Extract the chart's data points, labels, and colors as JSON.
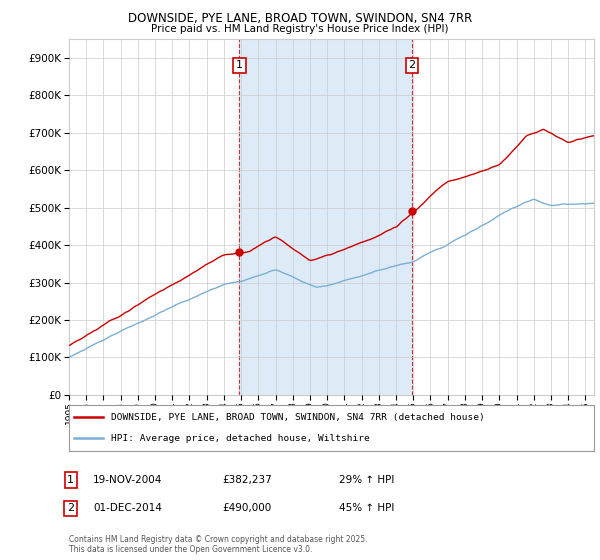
{
  "title1": "DOWNSIDE, PYE LANE, BROAD TOWN, SWINDON, SN4 7RR",
  "title2": "Price paid vs. HM Land Registry's House Price Index (HPI)",
  "legend_line1": "DOWNSIDE, PYE LANE, BROAD TOWN, SWINDON, SN4 7RR (detached house)",
  "legend_line2": "HPI: Average price, detached house, Wiltshire",
  "annotation1_date": "19-NOV-2004",
  "annotation1_price": "£382,237",
  "annotation1_hpi": "29% ↑ HPI",
  "annotation2_date": "01-DEC-2014",
  "annotation2_price": "£490,000",
  "annotation2_hpi": "45% ↑ HPI",
  "footnote": "Contains HM Land Registry data © Crown copyright and database right 2025.\nThis data is licensed under the Open Government Licence v3.0.",
  "sale1_year": 2004.9,
  "sale1_value": 382237,
  "sale2_year": 2014.92,
  "sale2_value": 490000,
  "hpi_color": "#7bafd4",
  "price_color": "#cc0000",
  "bg_color": "#ffffff",
  "grid_color": "#cccccc",
  "highlight_bg": "#ddeaf7",
  "ylim_max": 950000,
  "ylim_min": 0,
  "xlim_min": 1995,
  "xlim_max": 2025.5
}
